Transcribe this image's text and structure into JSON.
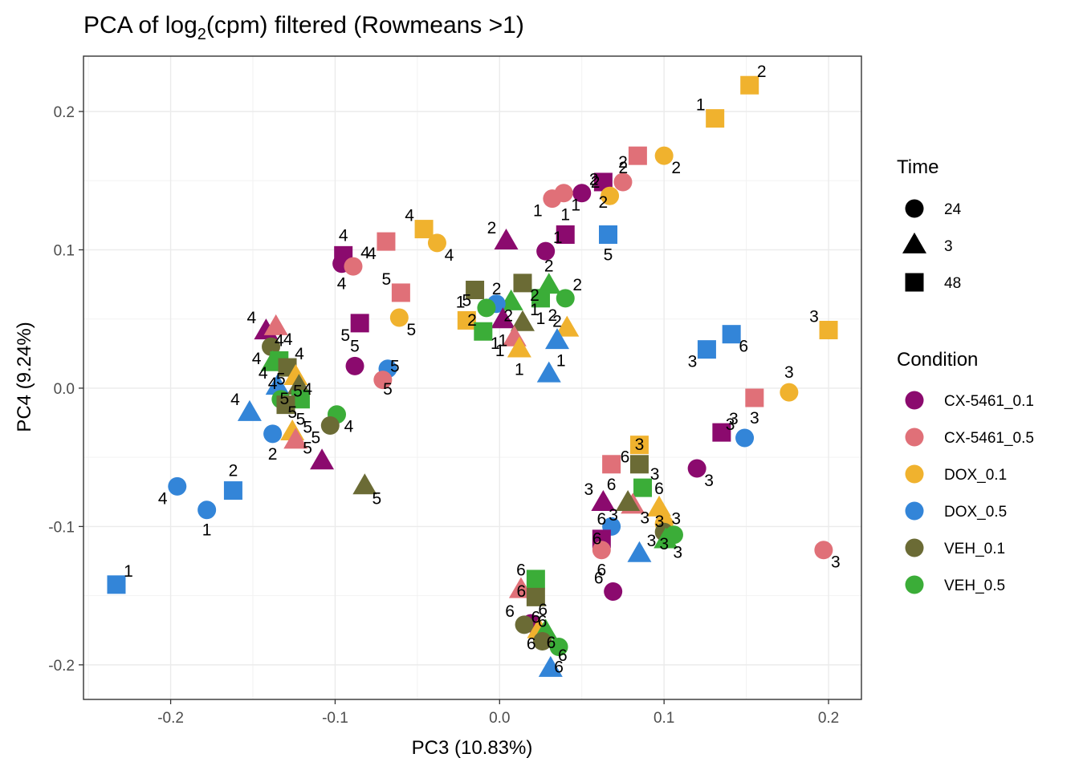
{
  "chart_data": {
    "type": "scatter",
    "title_main": "PCA of log",
    "title_sub": "2",
    "title_rest": "(cpm) filtered (Rowmeans >1)",
    "xlabel": "PC3 (10.83%)",
    "ylabel": "PC4 (9.24%)",
    "xlim": [
      -0.253,
      0.22
    ],
    "ylim": [
      -0.225,
      0.24
    ],
    "x_ticks": [
      {
        "value": -0.2,
        "label": "-0.2"
      },
      {
        "value": -0.1,
        "label": "-0.1"
      },
      {
        "value": 0.0,
        "label": "0.0"
      },
      {
        "value": 0.1,
        "label": "0.1"
      },
      {
        "value": 0.2,
        "label": "0.2"
      }
    ],
    "y_ticks": [
      {
        "value": -0.2,
        "label": "-0.2"
      },
      {
        "value": -0.1,
        "label": "-0.1"
      },
      {
        "value": 0.0,
        "label": "0.0"
      },
      {
        "value": 0.1,
        "label": "0.1"
      },
      {
        "value": 0.2,
        "label": "0.2"
      }
    ],
    "grid": true,
    "legend_position": "right",
    "legends": {
      "time": {
        "title": "Time",
        "entries": [
          {
            "label": "24",
            "shape": "circle"
          },
          {
            "label": "3",
            "shape": "triangle"
          },
          {
            "label": "48",
            "shape": "square"
          }
        ]
      },
      "condition": {
        "title": "Condition",
        "entries": [
          {
            "label": "CX-5461_0.1",
            "color": "#8B0A6E"
          },
          {
            "label": "CX-5461_0.5",
            "color": "#E07078"
          },
          {
            "label": "DOX_0.1",
            "color": "#F0B22E"
          },
          {
            "label": "DOX_0.5",
            "color": "#3385D8"
          },
          {
            "label": "VEH_0.1",
            "color": "#6B6B35"
          },
          {
            "label": "VEH_0.5",
            "color": "#3BAD38"
          }
        ]
      }
    },
    "points": [
      {
        "x": 0.152,
        "y": 0.219,
        "time": "48",
        "condition": "DOX_0.1",
        "label": "2"
      },
      {
        "x": 0.131,
        "y": 0.195,
        "time": "48",
        "condition": "DOX_0.1",
        "label": "1"
      },
      {
        "x": 0.1,
        "y": 0.168,
        "time": "24",
        "condition": "DOX_0.1",
        "label": "2"
      },
      {
        "x": 0.084,
        "y": 0.168,
        "time": "48",
        "condition": "CX-5461_0.5",
        "label": "2"
      },
      {
        "x": 0.075,
        "y": 0.149,
        "time": "24",
        "condition": "CX-5461_0.5",
        "label": "2"
      },
      {
        "x": 0.063,
        "y": 0.149,
        "time": "48",
        "condition": "CX-5461_0.1",
        "label": "2"
      },
      {
        "x": 0.05,
        "y": 0.141,
        "time": "24",
        "condition": "CX-5461_0.1",
        "label": "2"
      },
      {
        "x": 0.067,
        "y": 0.139,
        "time": "24",
        "condition": "DOX_0.1",
        "label": "2"
      },
      {
        "x": 0.039,
        "y": 0.141,
        "time": "24",
        "condition": "CX-5461_0.5",
        "label": "1"
      },
      {
        "x": 0.032,
        "y": 0.137,
        "time": "24",
        "condition": "CX-5461_0.5",
        "label": "1"
      },
      {
        "x": 0.04,
        "y": 0.111,
        "time": "48",
        "condition": "CX-5461_0.1",
        "label": "1"
      },
      {
        "x": 0.066,
        "y": 0.111,
        "time": "48",
        "condition": "DOX_0.5",
        "label": "5"
      },
      {
        "x": 0.028,
        "y": 0.099,
        "time": "24",
        "condition": "CX-5461_0.1",
        "label": "1"
      },
      {
        "x": 0.004,
        "y": 0.106,
        "time": "3",
        "condition": "CX-5461_0.1",
        "label": "2"
      },
      {
        "x": 0.014,
        "y": 0.076,
        "time": "48",
        "condition": "VEH_0.1",
        "label": "2"
      },
      {
        "x": -0.015,
        "y": 0.071,
        "time": "48",
        "condition": "VEH_0.1",
        "label": "1"
      },
      {
        "x": 0.03,
        "y": 0.074,
        "time": "3",
        "condition": "VEH_0.5",
        "label": "2"
      },
      {
        "x": 0.025,
        "y": 0.065,
        "time": "48",
        "condition": "VEH_0.5",
        "label": "1"
      },
      {
        "x": 0.04,
        "y": 0.065,
        "time": "24",
        "condition": "VEH_0.5",
        "label": "2"
      },
      {
        "x": 0.007,
        "y": 0.062,
        "time": "3",
        "condition": "VEH_0.5",
        "label": "2"
      },
      {
        "x": -0.002,
        "y": 0.061,
        "time": "24",
        "condition": "DOX_0.5",
        "label": "2"
      },
      {
        "x": -0.008,
        "y": 0.058,
        "time": "24",
        "condition": "VEH_0.5",
        "label": "2"
      },
      {
        "x": -0.02,
        "y": 0.049,
        "time": "48",
        "condition": "DOX_0.1",
        "label": "5"
      },
      {
        "x": 0.002,
        "y": 0.049,
        "time": "3",
        "condition": "CX-5461_0.1",
        "label": "1"
      },
      {
        "x": 0.014,
        "y": 0.047,
        "time": "3",
        "condition": "VEH_0.1",
        "label": "1"
      },
      {
        "x": 0.041,
        "y": 0.043,
        "time": "3",
        "condition": "DOX_0.1",
        "label": "2"
      },
      {
        "x": -0.01,
        "y": 0.041,
        "time": "48",
        "condition": "VEH_0.5",
        "label": "1"
      },
      {
        "x": 0.009,
        "y": 0.036,
        "time": "3",
        "condition": "CX-5461_0.5",
        "label": "1"
      },
      {
        "x": 0.035,
        "y": 0.034,
        "time": "3",
        "condition": "DOX_0.5",
        "label": "2"
      },
      {
        "x": 0.012,
        "y": 0.028,
        "time": "3",
        "condition": "DOX_0.1",
        "label": "1"
      },
      {
        "x": 0.03,
        "y": 0.01,
        "time": "3",
        "condition": "DOX_0.5",
        "label": "1"
      },
      {
        "x": -0.046,
        "y": 0.115,
        "time": "48",
        "condition": "DOX_0.1",
        "label": "4"
      },
      {
        "x": -0.038,
        "y": 0.105,
        "time": "24",
        "condition": "DOX_0.1",
        "label": "4"
      },
      {
        "x": -0.069,
        "y": 0.106,
        "time": "48",
        "condition": "CX-5461_0.5",
        "label": "4"
      },
      {
        "x": -0.095,
        "y": 0.096,
        "time": "48",
        "condition": "CX-5461_0.1",
        "label": "4"
      },
      {
        "x": -0.096,
        "y": 0.09,
        "time": "24",
        "condition": "CX-5461_0.1",
        "label": "4"
      },
      {
        "x": -0.089,
        "y": 0.088,
        "time": "24",
        "condition": "CX-5461_0.5",
        "label": "4"
      },
      {
        "x": -0.06,
        "y": 0.069,
        "time": "48",
        "condition": "CX-5461_0.5",
        "label": "5"
      },
      {
        "x": -0.061,
        "y": 0.051,
        "time": "24",
        "condition": "DOX_0.1",
        "label": "5"
      },
      {
        "x": -0.085,
        "y": 0.047,
        "time": "48",
        "condition": "CX-5461_0.1",
        "label": "5"
      },
      {
        "x": -0.088,
        "y": 0.016,
        "time": "24",
        "condition": "CX-5461_0.1",
        "label": "5"
      },
      {
        "x": -0.068,
        "y": 0.014,
        "time": "24",
        "condition": "DOX_0.5",
        "label": "5"
      },
      {
        "x": -0.071,
        "y": 0.006,
        "time": "24",
        "condition": "CX-5461_0.5",
        "label": "5"
      },
      {
        "x": -0.142,
        "y": 0.041,
        "time": "3",
        "condition": "CX-5461_0.1",
        "label": "4"
      },
      {
        "x": -0.136,
        "y": 0.044,
        "time": "3",
        "condition": "CX-5461_0.5",
        "label": "4"
      },
      {
        "x": -0.139,
        "y": 0.03,
        "time": "24",
        "condition": "VEH_0.1",
        "label": "4"
      },
      {
        "x": -0.134,
        "y": 0.02,
        "time": "48",
        "condition": "VEH_0.5",
        "label": "4"
      },
      {
        "x": -0.138,
        "y": 0.018,
        "time": "3",
        "condition": "VEH_0.5",
        "label": "4"
      },
      {
        "x": -0.129,
        "y": 0.015,
        "time": "48",
        "condition": "VEH_0.1",
        "label": "4"
      },
      {
        "x": -0.135,
        "y": 0.001,
        "time": "3",
        "condition": "DOX_0.5",
        "label": "4"
      },
      {
        "x": -0.124,
        "y": 0.008,
        "time": "3",
        "condition": "DOX_0.1",
        "label": "4"
      },
      {
        "x": -0.122,
        "y": 0.001,
        "time": "3",
        "condition": "VEH_0.1",
        "label": "5"
      },
      {
        "x": -0.133,
        "y": -0.008,
        "time": "24",
        "condition": "VEH_0.5",
        "label": "5"
      },
      {
        "x": -0.121,
        "y": -0.008,
        "time": "48",
        "condition": "VEH_0.5",
        "label": "5"
      },
      {
        "x": -0.13,
        "y": -0.012,
        "time": "48",
        "condition": "VEH_0.1",
        "label": "5"
      },
      {
        "x": -0.152,
        "y": -0.018,
        "time": "3",
        "condition": "DOX_0.5",
        "label": "4"
      },
      {
        "x": -0.099,
        "y": -0.019,
        "time": "24",
        "condition": "VEH_0.5",
        "label": "4"
      },
      {
        "x": -0.103,
        "y": -0.027,
        "time": "24",
        "condition": "VEH_0.1",
        "label": "5"
      },
      {
        "x": -0.126,
        "y": -0.032,
        "time": "3",
        "condition": "DOX_0.1",
        "label": "5"
      },
      {
        "x": -0.138,
        "y": -0.033,
        "time": "24",
        "condition": "DOX_0.5",
        "label": "2"
      },
      {
        "x": -0.124,
        "y": -0.038,
        "time": "3",
        "condition": "CX-5461_0.5",
        "label": "5"
      },
      {
        "x": -0.108,
        "y": -0.053,
        "time": "3",
        "condition": "CX-5461_0.1",
        "label": "5"
      },
      {
        "x": -0.082,
        "y": -0.071,
        "time": "3",
        "condition": "VEH_0.1",
        "label": "5"
      },
      {
        "x": -0.196,
        "y": -0.071,
        "time": "24",
        "condition": "DOX_0.5",
        "label": "4"
      },
      {
        "x": -0.162,
        "y": -0.074,
        "time": "48",
        "condition": "DOX_0.5",
        "label": "2"
      },
      {
        "x": -0.178,
        "y": -0.088,
        "time": "24",
        "condition": "DOX_0.5",
        "label": "1"
      },
      {
        "x": -0.233,
        "y": -0.142,
        "time": "48",
        "condition": "DOX_0.5",
        "label": "1"
      },
      {
        "x": 0.2,
        "y": 0.042,
        "time": "48",
        "condition": "DOX_0.1",
        "label": "3"
      },
      {
        "x": 0.141,
        "y": 0.039,
        "time": "48",
        "condition": "DOX_0.5",
        "label": "6"
      },
      {
        "x": 0.126,
        "y": 0.028,
        "time": "48",
        "condition": "DOX_0.5",
        "label": "3"
      },
      {
        "x": 0.176,
        "y": -0.003,
        "time": "24",
        "condition": "DOX_0.1",
        "label": "3"
      },
      {
        "x": 0.155,
        "y": -0.007,
        "time": "48",
        "condition": "CX-5461_0.5",
        "label": "3"
      },
      {
        "x": 0.135,
        "y": -0.032,
        "time": "48",
        "condition": "CX-5461_0.1",
        "label": "3"
      },
      {
        "x": 0.149,
        "y": -0.036,
        "time": "24",
        "condition": "DOX_0.5",
        "label": "3"
      },
      {
        "x": 0.12,
        "y": -0.058,
        "time": "24",
        "condition": "CX-5461_0.1",
        "label": "3"
      },
      {
        "x": 0.085,
        "y": -0.041,
        "time": "48",
        "condition": "DOX_0.1",
        "label": "6"
      },
      {
        "x": 0.085,
        "y": -0.055,
        "time": "48",
        "condition": "VEH_0.1",
        "label": "3"
      },
      {
        "x": 0.068,
        "y": -0.055,
        "time": "48",
        "condition": "CX-5461_0.5",
        "label": "6"
      },
      {
        "x": 0.087,
        "y": -0.072,
        "time": "48",
        "condition": "VEH_0.5",
        "label": "3"
      },
      {
        "x": 0.063,
        "y": -0.083,
        "time": "3",
        "condition": "CX-5461_0.1",
        "label": "3"
      },
      {
        "x": 0.081,
        "y": -0.085,
        "time": "3",
        "condition": "CX-5461_0.5",
        "label": "3"
      },
      {
        "x": 0.078,
        "y": -0.083,
        "time": "3",
        "condition": "VEH_0.1",
        "label": "3"
      },
      {
        "x": 0.097,
        "y": -0.087,
        "time": "3",
        "condition": "DOX_0.1",
        "label": "6"
      },
      {
        "x": 0.1,
        "y": -0.098,
        "time": "24",
        "condition": "DOX_0.1",
        "label": "3"
      },
      {
        "x": 0.1,
        "y": -0.104,
        "time": "24",
        "condition": "VEH_0.1",
        "label": "3"
      },
      {
        "x": 0.106,
        "y": -0.106,
        "time": "24",
        "condition": "VEH_0.5",
        "label": "3"
      },
      {
        "x": 0.101,
        "y": -0.11,
        "time": "3",
        "condition": "VEH_0.5",
        "label": "3"
      },
      {
        "x": 0.068,
        "y": -0.1,
        "time": "24",
        "condition": "DOX_0.5",
        "label": "6"
      },
      {
        "x": 0.062,
        "y": -0.109,
        "time": "48",
        "condition": "CX-5461_0.1",
        "label": "6"
      },
      {
        "x": 0.062,
        "y": -0.117,
        "time": "24",
        "condition": "CX-5461_0.5",
        "label": "6"
      },
      {
        "x": 0.085,
        "y": -0.12,
        "time": "3",
        "condition": "DOX_0.5",
        "label": "3"
      },
      {
        "x": 0.069,
        "y": -0.147,
        "time": "24",
        "condition": "CX-5461_0.1",
        "label": "6"
      },
      {
        "x": 0.197,
        "y": -0.117,
        "time": "24",
        "condition": "CX-5461_0.5",
        "label": "3"
      },
      {
        "x": 0.022,
        "y": -0.138,
        "time": "48",
        "condition": "VEH_0.5",
        "label": "6"
      },
      {
        "x": 0.013,
        "y": -0.146,
        "time": "3",
        "condition": "CX-5461_0.5",
        "label": "6"
      },
      {
        "x": 0.022,
        "y": -0.151,
        "time": "48",
        "condition": "VEH_0.1",
        "label": "6"
      },
      {
        "x": 0.019,
        "y": -0.17,
        "time": "24",
        "condition": "CX-5461_0.1",
        "label": "6"
      },
      {
        "x": 0.015,
        "y": -0.171,
        "time": "24",
        "condition": "VEH_0.1",
        "label": "6"
      },
      {
        "x": 0.024,
        "y": -0.175,
        "time": "3",
        "condition": "DOX_0.1",
        "label": "6"
      },
      {
        "x": 0.028,
        "y": -0.176,
        "time": "3",
        "condition": "VEH_0.5",
        "label": "6"
      },
      {
        "x": 0.026,
        "y": -0.183,
        "time": "24",
        "condition": "VEH_0.1",
        "label": "6"
      },
      {
        "x": 0.036,
        "y": -0.187,
        "time": "24",
        "condition": "VEH_0.5",
        "label": "6"
      },
      {
        "x": 0.031,
        "y": -0.203,
        "time": "3",
        "condition": "DOX_0.5",
        "label": "6"
      }
    ]
  }
}
